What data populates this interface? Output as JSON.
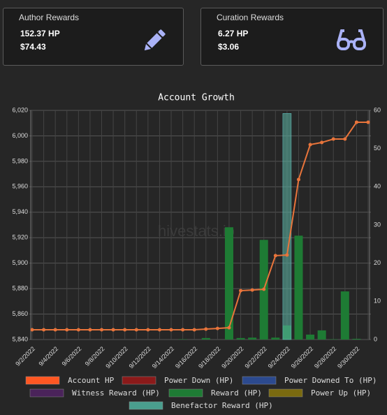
{
  "cards": [
    {
      "title": "Author Rewards",
      "hp": "152.37 HP",
      "usd": "$74.43"
    },
    {
      "title": "Curation Rewards",
      "hp": "6.27 HP",
      "usd": "$3.06"
    }
  ],
  "chart_data": {
    "type": "bar",
    "title": "Account Growth",
    "watermark": "hivestats.io",
    "categories": [
      "9/2/2022",
      null,
      "9/4/2022",
      null,
      "9/6/2022",
      null,
      "9/8/2022",
      null,
      "9/10/2022",
      null,
      "9/12/2022",
      null,
      "9/14/2022",
      null,
      "9/16/2022",
      null,
      "9/18/2022",
      null,
      "9/20/2022",
      null,
      "9/22/2022",
      null,
      "9/24/2022",
      null,
      "9/26/2022",
      null,
      "9/28/2022",
      null,
      "9/30/2022",
      null
    ],
    "ylim": [
      5840,
      6020
    ],
    "yticks": [
      {
        "value": 5840,
        "label": "5,840"
      },
      {
        "value": 5860,
        "label": "5,860"
      },
      {
        "value": 5880,
        "label": "5,880"
      },
      {
        "value": 5900,
        "label": "5,900"
      },
      {
        "value": 5920,
        "label": "5,920"
      },
      {
        "value": 5940,
        "label": "5,940"
      },
      {
        "value": 5960,
        "label": "5,960"
      },
      {
        "value": 5980,
        "label": "5,980"
      },
      {
        "value": 6000,
        "label": "6,000"
      },
      {
        "value": 6020,
        "label": "6,020"
      }
    ],
    "y2lim": [
      0,
      60
    ],
    "y2ticks": [
      0,
      10,
      20,
      30,
      40,
      50,
      60
    ],
    "grid": true,
    "series": [
      {
        "name": "Account HP",
        "type": "line",
        "color": "#e8743b",
        "legend_color": "#ff5722",
        "values": [
          5847.7,
          5847.7,
          5847.7,
          5847.7,
          5847.7,
          5847.7,
          5847.7,
          5847.7,
          5847.7,
          5847.7,
          5847.7,
          5847.7,
          5847.7,
          5847.7,
          5847.7,
          5848.2,
          5848.7,
          5849.3,
          5878.4,
          5878.9,
          5879.5,
          5905.9,
          5906.4,
          5965.7,
          5993.1,
          5994.8,
          5997.5,
          5997.5,
          6010.7,
          6010.7
        ]
      },
      {
        "name": "Power Down (HP)",
        "axis": "y2",
        "color": "#8b1a1a",
        "values": [
          0,
          0,
          0,
          0,
          0,
          0,
          0,
          0,
          0,
          0,
          0,
          0,
          0,
          0,
          0,
          0,
          0,
          0,
          0,
          0,
          0,
          0,
          0,
          0,
          0,
          0,
          0,
          0,
          0,
          0
        ]
      },
      {
        "name": "Power Downed To (HP)",
        "axis": "y2",
        "color": "#2c4a8f",
        "values": [
          0,
          0,
          0,
          0,
          0,
          0,
          0,
          0,
          0,
          0,
          0,
          0,
          0,
          0,
          0,
          0,
          0,
          0,
          0,
          0,
          0,
          0,
          0,
          0,
          0,
          0,
          0,
          0,
          0,
          0
        ]
      },
      {
        "name": "Witness Reward (HP)",
        "axis": "y2",
        "color": "#4a235a",
        "values": [
          0,
          0,
          0,
          0,
          0,
          0,
          0,
          0,
          0,
          0,
          0,
          0,
          0,
          0,
          0,
          0,
          0,
          0,
          0,
          0,
          0,
          0,
          0,
          0,
          0,
          0,
          0,
          0,
          0,
          0
        ]
      },
      {
        "name": "Reward (HP)",
        "axis": "y2",
        "color": "#1e7b34",
        "values": [
          0,
          0,
          0,
          0,
          0,
          0,
          0,
          0,
          0,
          0,
          0,
          0,
          0,
          0.1,
          0,
          0.4,
          0,
          29.4,
          0.4,
          0.5,
          26.1,
          0.5,
          3.7,
          27.2,
          1.3,
          2.4,
          0.1,
          12.6,
          0.2,
          0
        ]
      },
      {
        "name": "Power Up (HP)",
        "axis": "y2",
        "color": "#7a6a10",
        "values": [
          0,
          0,
          0,
          0,
          0,
          0,
          0,
          0,
          0,
          0,
          0,
          0,
          0,
          0,
          0,
          0,
          0,
          0,
          0,
          0,
          0,
          0,
          0,
          0,
          0,
          0,
          0,
          0,
          0,
          0
        ]
      },
      {
        "name": "Benefactor Reward (HP)",
        "axis": "y2",
        "color": "rgba(92,184,168,0.55)",
        "legend_color": "#4a9e8e",
        "values": [
          0,
          0,
          0,
          0,
          0,
          0,
          0,
          0,
          0,
          0,
          0,
          0,
          0,
          0,
          0,
          0,
          0,
          0,
          0,
          0,
          0,
          0,
          59.2,
          0,
          0,
          0,
          0,
          0,
          0,
          0
        ]
      }
    ]
  }
}
